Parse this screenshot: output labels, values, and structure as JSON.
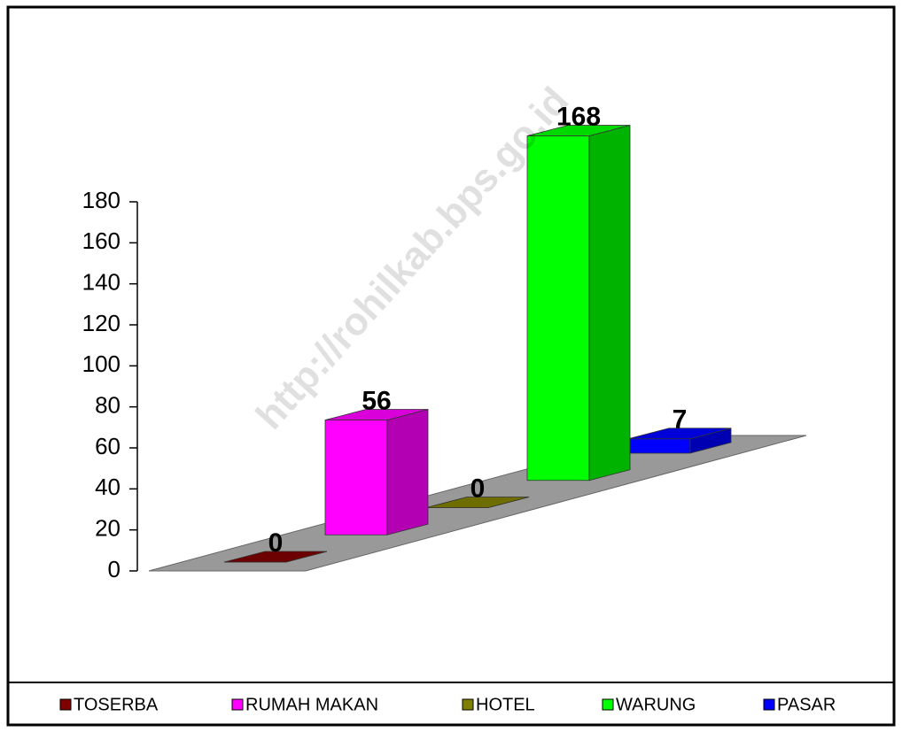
{
  "chart_data": {
    "type": "bar3d",
    "watermark": "http://rohilkab.bps.go.id",
    "categories": [
      "TOSERBA",
      "RUMAH MAKAN",
      "HOTEL",
      "WARUNG",
      "PASAR"
    ],
    "series": [
      {
        "name": "TOSERBA",
        "color": "#800000"
      },
      {
        "name": "RUMAH MAKAN",
        "color": "#ff00ff"
      },
      {
        "name": "HOTEL",
        "color": "#808000"
      },
      {
        "name": "WARUNG",
        "color": "#00ff00"
      },
      {
        "name": "PASAR",
        "color": "#0000ff"
      }
    ],
    "values": [
      0,
      56,
      0,
      168,
      7
    ],
    "ylim": [
      0,
      180
    ],
    "yticks": [
      0,
      20,
      40,
      60,
      80,
      100,
      120,
      140,
      160,
      180
    ],
    "legend": "bottom"
  }
}
